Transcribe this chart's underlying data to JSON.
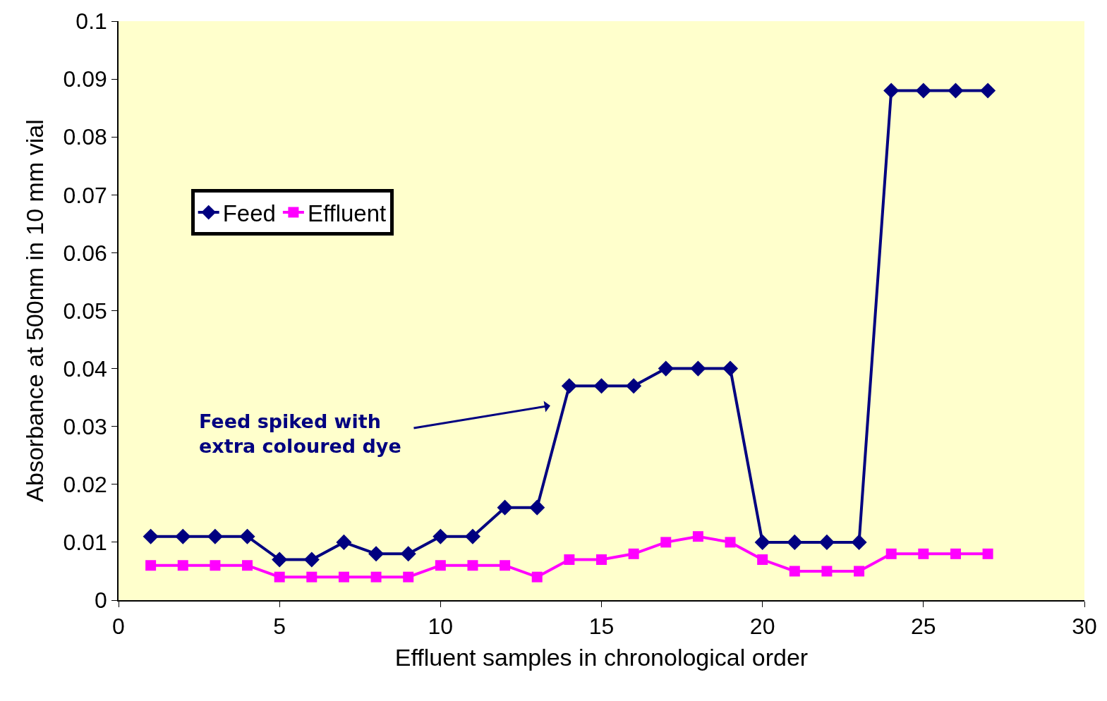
{
  "chart_data": {
    "type": "line",
    "xlabel": "Effluent samples in chronological order",
    "ylabel": "Absorbance at 500nm in 10 mm vial",
    "x": [
      1,
      2,
      3,
      4,
      5,
      6,
      7,
      8,
      9,
      10,
      11,
      12,
      13,
      14,
      15,
      16,
      17,
      18,
      19,
      20,
      21,
      22,
      23,
      24,
      25,
      26,
      27
    ],
    "series": [
      {
        "name": "Feed",
        "color": "#000080",
        "marker": "diamond",
        "values": [
          0.011,
          0.011,
          0.011,
          0.011,
          0.007,
          0.007,
          0.01,
          0.008,
          0.008,
          0.011,
          0.011,
          0.016,
          0.016,
          0.037,
          0.037,
          0.037,
          0.04,
          0.04,
          0.04,
          0.01,
          0.01,
          0.01,
          0.01,
          0.088,
          0.088,
          0.088,
          0.088
        ]
      },
      {
        "name": "Effluent",
        "color": "#ff00ff",
        "marker": "square",
        "values": [
          0.006,
          0.006,
          0.006,
          0.006,
          0.004,
          0.004,
          0.004,
          0.004,
          0.004,
          0.006,
          0.006,
          0.006,
          0.004,
          0.007,
          0.007,
          0.008,
          0.01,
          0.011,
          0.01,
          0.007,
          0.005,
          0.005,
          0.005,
          0.008,
          0.008,
          0.008,
          0.008
        ]
      }
    ],
    "xlim": [
      0,
      30
    ],
    "xticks": [
      0,
      5,
      10,
      15,
      20,
      25,
      30
    ],
    "ylim": [
      0,
      0.1
    ],
    "yticks": [
      0,
      0.01,
      0.02,
      0.03,
      0.04,
      0.05,
      0.06,
      0.07,
      0.08,
      0.09,
      0.1
    ],
    "grid": false,
    "legend": "top left",
    "line_style": "solid",
    "annotations": [
      "Feed spiked with\nextra coloured dye"
    ]
  }
}
